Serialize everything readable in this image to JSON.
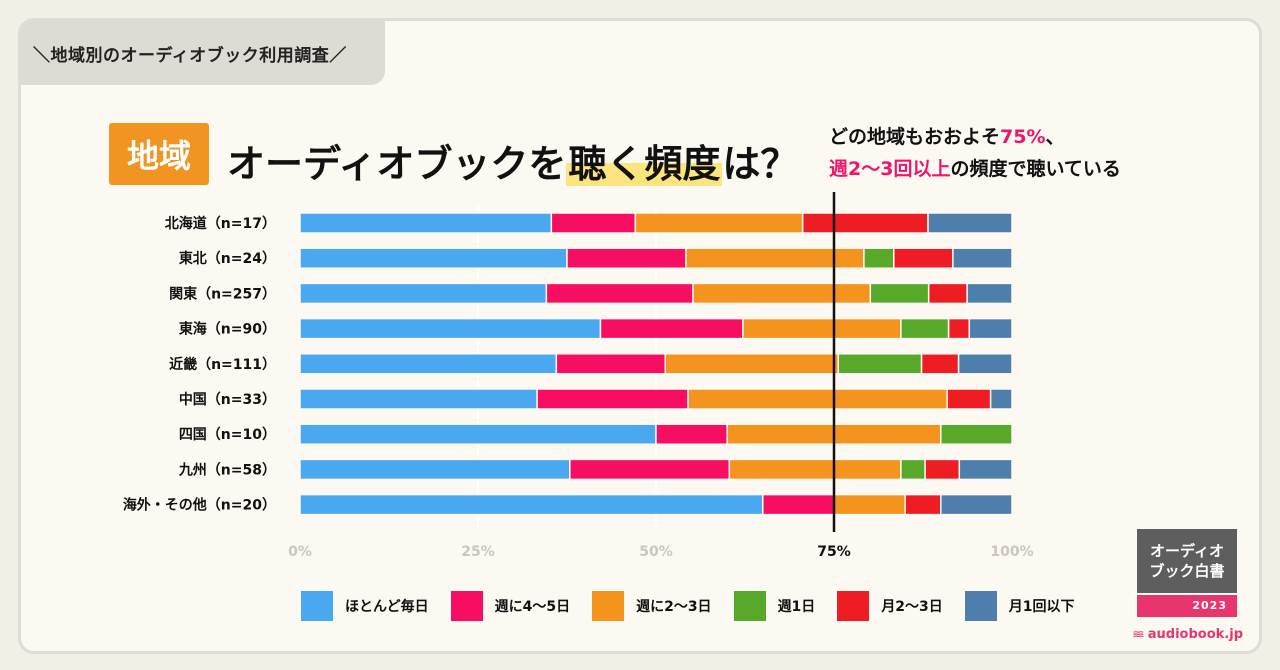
{
  "header": {
    "label": "＼地域別のオーディオブック利用調査／"
  },
  "title": {
    "badge": "地域",
    "before": "オーディオブックを",
    "highlight": "聴く頻度",
    "after": "は？"
  },
  "note": {
    "line1_prefix": "どの地域もおおよそ",
    "line1_emph": "75%",
    "line1_suffix": "、",
    "line2_emph": "週2〜3回以上",
    "line2_suffix": "の頻度で聴いている"
  },
  "chart_data": {
    "type": "bar",
    "orientation": "horizontal-stacked-100",
    "categories": [
      "北海道（n=17）",
      "東北（n=24）",
      "関東（n=257）",
      "東海（n=90）",
      "近畿（n=111）",
      "中国（n=33）",
      "四国（n=10）",
      "九州（n=58）",
      "海外・その他（n=20）"
    ],
    "series": [
      {
        "name": "ほとんど毎日",
        "color": "#4aa8f0",
        "values": [
          35.3,
          37.5,
          34.6,
          42.2,
          36.0,
          33.3,
          50.0,
          37.9,
          65.0
        ]
      },
      {
        "name": "週に4〜5日",
        "color": "#f70e63",
        "values": [
          11.8,
          16.7,
          20.6,
          20.0,
          15.3,
          21.2,
          10.0,
          22.4,
          10.0
        ]
      },
      {
        "name": "週に2〜3日",
        "color": "#f5931f",
        "values": [
          23.5,
          25.0,
          24.9,
          22.2,
          24.3,
          36.4,
          30.0,
          24.1,
          10.0
        ]
      },
      {
        "name": "週1日",
        "color": "#58a92a",
        "values": [
          0.0,
          4.2,
          8.2,
          6.7,
          11.7,
          0.0,
          10.0,
          3.4,
          0.0
        ]
      },
      {
        "name": "月2〜3日",
        "color": "#ee1d23",
        "values": [
          17.6,
          8.3,
          5.4,
          2.9,
          5.2,
          6.1,
          0.0,
          4.8,
          5.0
        ]
      },
      {
        "name": "月1回以下",
        "color": "#4d7eac",
        "values": [
          11.8,
          8.3,
          6.3,
          6.0,
          7.5,
          3.0,
          0.0,
          7.4,
          10.0
        ]
      }
    ],
    "x_ticks": [
      "0%",
      "25%",
      "50%",
      "75%",
      "100%"
    ],
    "xlim": [
      0,
      100
    ],
    "reference_line": 75,
    "legend": "bottom"
  },
  "logo": {
    "line1": "オーディオ",
    "line2": "ブック白書",
    "year": "2023",
    "site": "audiobook.jp"
  }
}
